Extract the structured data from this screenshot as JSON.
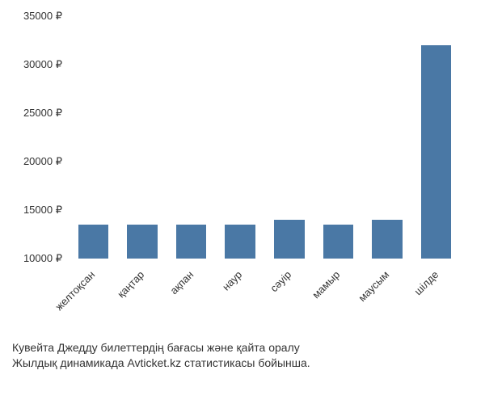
{
  "chart": {
    "type": "bar",
    "categories": [
      "желтоқсан",
      "қаңтар",
      "ақпан",
      "наур",
      "сәуір",
      "мамыр",
      "маусым",
      "шілде"
    ],
    "values": [
      13500,
      13500,
      13500,
      13500,
      14000,
      13500,
      14000,
      32000
    ],
    "bar_color": "#4a78a5",
    "y_min": 10000,
    "y_max": 35000,
    "y_tick_step": 5000,
    "y_ticks": [
      10000,
      15000,
      20000,
      25000,
      30000,
      35000
    ],
    "y_tick_labels": [
      "10000 ₽",
      "15000 ₽",
      "20000 ₽",
      "25000 ₽",
      "30000 ₽",
      "35000 ₽"
    ],
    "currency_symbol": "₽",
    "bar_width_ratio": 0.62,
    "background_color": "#ffffff",
    "label_fontsize": 13,
    "label_color": "#333333",
    "x_label_rotation": -45
  },
  "caption": {
    "line1": "Кувейта Джедду билеттердің бағасы және қайта оралу",
    "line2": "Жылдық динамикада Avticket.kz статистикасы бойынша."
  }
}
